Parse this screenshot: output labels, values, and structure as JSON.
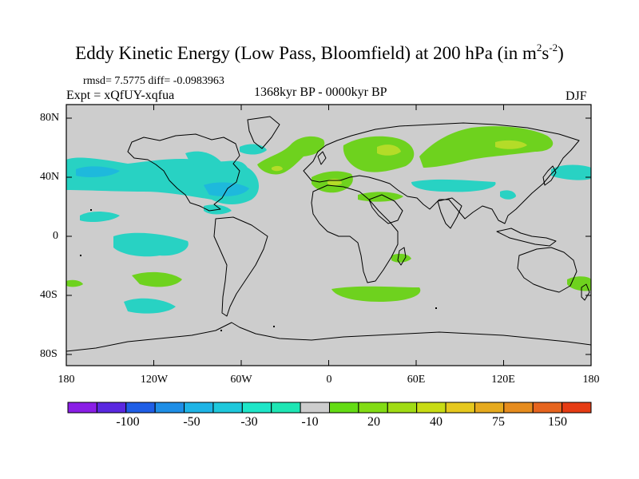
{
  "title": {
    "main": "Eddy Kinetic Energy (Low Pass, Bloomfield) at 200 hPa (in m",
    "sup1": "2",
    "mid": "s",
    "sup2": "-2",
    "close": ")"
  },
  "stats": "rmsd= 7.5775 diff= -0.0983963",
  "experiment": "Expt = xQfUY-xqfua",
  "period": "1368kyr BP - 0000kyr BP",
  "season": "DJF",
  "axes": {
    "lat_labels": [
      "80N",
      "40N",
      "0",
      "40S",
      "80S"
    ],
    "lon_labels": [
      "180",
      "120W",
      "60W",
      "0",
      "60E",
      "120E",
      "180"
    ]
  },
  "colorbar": {
    "labels": [
      "-100",
      "-50",
      "-30",
      "-10",
      "20",
      "40",
      "75",
      "150"
    ],
    "colors": [
      "#8a1ee6",
      "#5a28e0",
      "#1f5ee6",
      "#1e8ee6",
      "#1eb4e6",
      "#1ec8dc",
      "#1ee6c8",
      "#1ee6b4",
      "#cdcdcd",
      "#64dc14",
      "#82dc14",
      "#a0dc14",
      "#c8dc14",
      "#e6c81e",
      "#e6aa1e",
      "#e68c1e",
      "#e6641e",
      "#e63c14"
    ]
  },
  "colors": {
    "background": "#cdcdcd",
    "positive": "#6ed21e",
    "positive_strong": "#b4dc28",
    "negative": "#28d2c3",
    "negative_strong": "#1eb9dc"
  }
}
